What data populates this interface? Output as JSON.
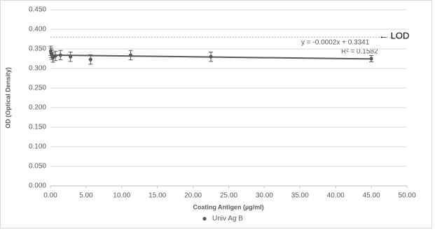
{
  "chart_data": {
    "type": "scatter",
    "x_label": "Coating Antigen (µg/ml)",
    "y_label": "OD (Optical Density)",
    "series": [
      {
        "name": "Univ Ag B",
        "color": "#595959",
        "x": [
          0.044,
          0.088,
          0.176,
          0.352,
          0.703,
          1.406,
          2.8125,
          5.625,
          11.25,
          22.5,
          45
        ],
        "values": [
          0.345,
          0.34,
          0.335,
          0.328,
          0.332,
          0.334,
          0.33,
          0.323,
          0.334,
          0.33,
          0.325
        ],
        "errors": [
          0.012,
          0.012,
          0.012,
          0.012,
          0.012,
          0.012,
          0.012,
          0.012,
          0.012,
          0.012,
          0.008
        ]
      }
    ],
    "trendline_equation": "y = -0.0002x + 0.3341",
    "trendline_r2": "R² = 0.1582",
    "reference_line": {
      "value": 0.38,
      "label": "← LOD"
    },
    "xlim": [
      0,
      50
    ],
    "xticks": [
      {
        "value": 0,
        "label": "0.00"
      },
      {
        "value": 5,
        "label": "5.00"
      },
      {
        "value": 10,
        "label": "10.00"
      },
      {
        "value": 15,
        "label": "15.00"
      },
      {
        "value": 20,
        "label": "20.00"
      },
      {
        "value": 25,
        "label": "25.00"
      },
      {
        "value": 30,
        "label": "30.00"
      },
      {
        "value": 35,
        "label": "35.00"
      },
      {
        "value": 40,
        "label": "40.00"
      },
      {
        "value": 45,
        "label": "45.00"
      },
      {
        "value": 50,
        "label": "50.00"
      }
    ],
    "ylim": [
      0,
      0.45
    ],
    "yticks": [
      {
        "value": 0,
        "label": "0.000"
      },
      {
        "value": 0.05,
        "label": "0.050"
      },
      {
        "value": 0.1,
        "label": "0.100"
      },
      {
        "value": 0.15,
        "label": "0.150"
      },
      {
        "value": 0.2,
        "label": "0.200"
      },
      {
        "value": 0.25,
        "label": "0.250"
      },
      {
        "value": 0.3,
        "label": "0.300"
      },
      {
        "value": 0.35,
        "label": "0.350"
      },
      {
        "value": 0.4,
        "label": "0.400"
      },
      {
        "value": 0.45,
        "label": "0.450"
      }
    ],
    "grid": true
  }
}
